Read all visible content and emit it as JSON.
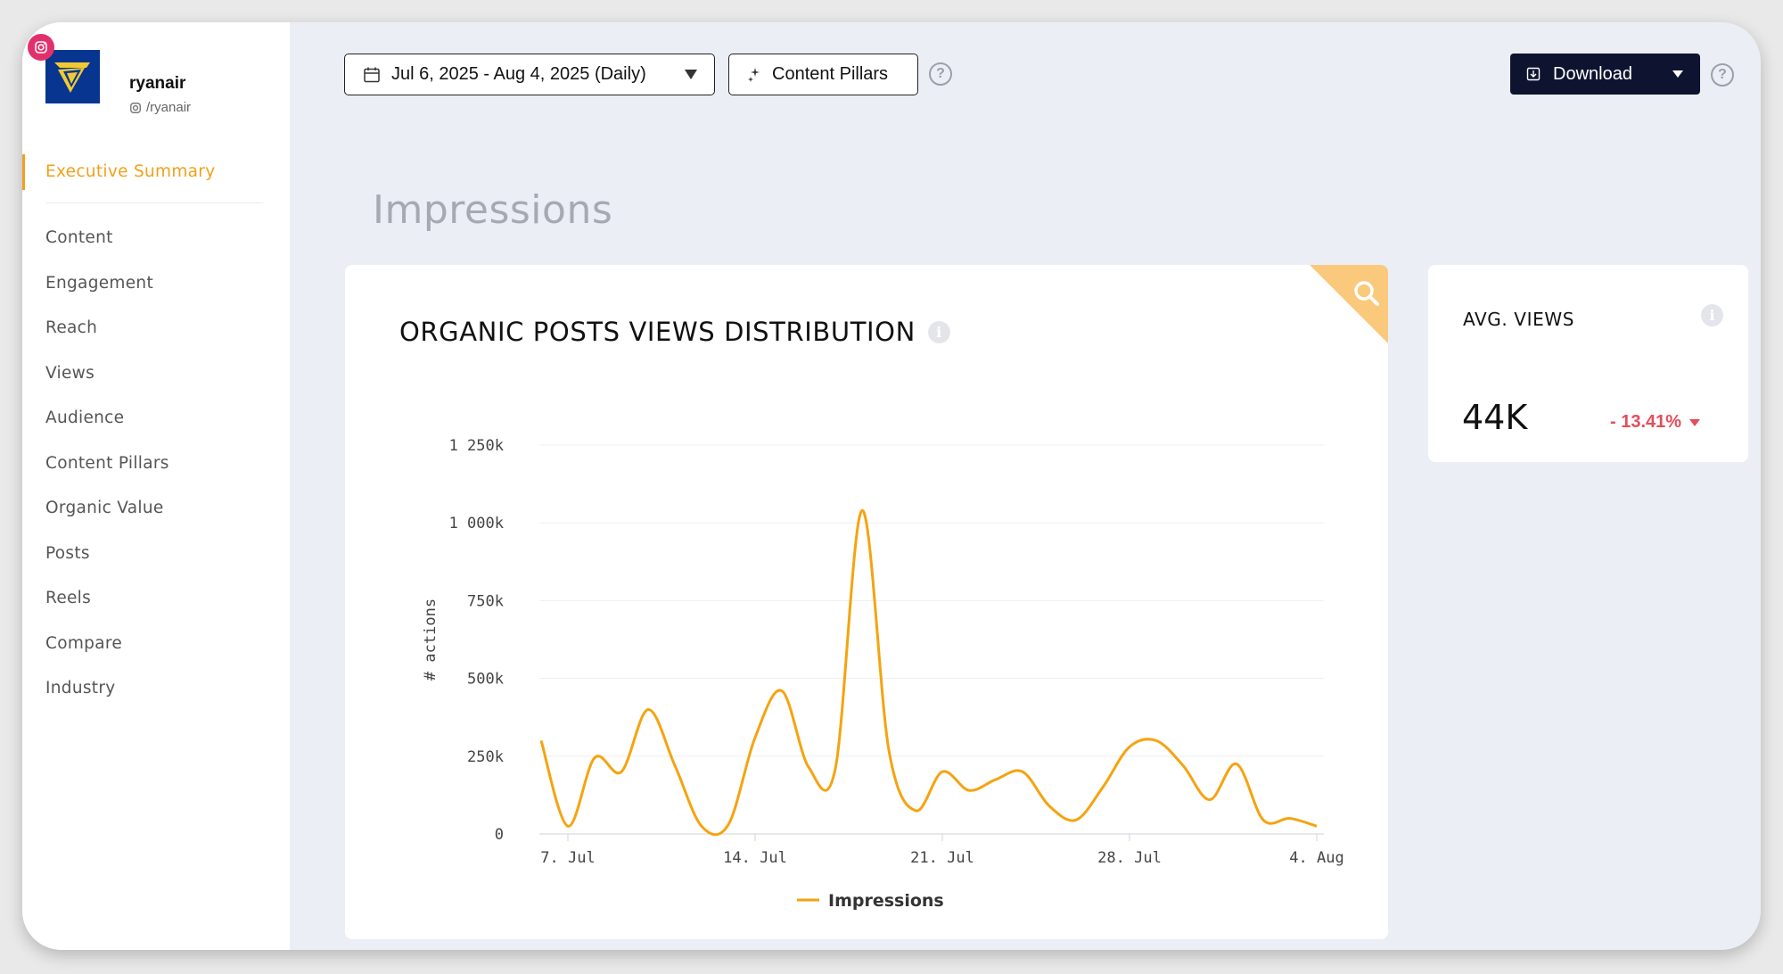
{
  "profile": {
    "name": "ryanair",
    "handle": "/ryanair"
  },
  "nav": {
    "items": [
      {
        "label": "Executive Summary",
        "active": true
      },
      {
        "label": "Content"
      },
      {
        "label": "Engagement"
      },
      {
        "label": "Reach"
      },
      {
        "label": "Views"
      },
      {
        "label": "Audience"
      },
      {
        "label": "Content Pillars"
      },
      {
        "label": "Organic Value"
      },
      {
        "label": "Posts"
      },
      {
        "label": "Reels"
      },
      {
        "label": "Compare"
      },
      {
        "label": "Industry"
      }
    ]
  },
  "toolbar": {
    "date_range": "Jul 6, 2025 - Aug 4, 2025 (Daily)",
    "pillars_label": "Content Pillars",
    "help": "?",
    "download_label": "Download"
  },
  "page": {
    "title": "Impressions"
  },
  "chart_card": {
    "title": "ORGANIC POSTS VIEWS DISTRIBUTION",
    "info": "i"
  },
  "avg_card": {
    "title": "AVG. VIEWS",
    "info": "i",
    "value": "44K",
    "change": "- 13.41%"
  },
  "colors": {
    "accent": "#f0a11b",
    "line": "#f5a30f",
    "negative": "#e34d5a",
    "dark_button": "#0e1430"
  },
  "chart_data": {
    "type": "line",
    "title": "ORGANIC POSTS VIEWS DISTRIBUTION",
    "xlabel": "",
    "ylabel": "# actions",
    "ylim": [
      0,
      1250000
    ],
    "yticks": [
      {
        "value": 0,
        "label": "0"
      },
      {
        "value": 250000,
        "label": "250k"
      },
      {
        "value": 500000,
        "label": "500k"
      },
      {
        "value": 750000,
        "label": "750k"
      },
      {
        "value": 1000000,
        "label": "1 000k"
      },
      {
        "value": 1250000,
        "label": "1 250k"
      }
    ],
    "xticks": [
      {
        "day": 1,
        "label": "7. Jul"
      },
      {
        "day": 8,
        "label": "14. Jul"
      },
      {
        "day": 15,
        "label": "21. Jul"
      },
      {
        "day": 22,
        "label": "28. Jul"
      },
      {
        "day": 29,
        "label": "4. Aug"
      }
    ],
    "x": [
      0,
      1,
      2,
      3,
      4,
      5,
      6,
      7,
      8,
      9,
      10,
      11,
      12,
      13,
      14,
      15,
      16,
      17,
      18,
      19,
      20,
      21,
      22,
      23,
      24,
      25,
      26,
      27,
      28,
      29
    ],
    "series": [
      {
        "name": "Impressions",
        "values": [
          300000,
          25000,
          245000,
          200000,
          400000,
          220000,
          25000,
          30000,
          310000,
          460000,
          215000,
          210000,
          1040000,
          270000,
          75000,
          200000,
          140000,
          175000,
          200000,
          90000,
          45000,
          150000,
          280000,
          300000,
          220000,
          110000,
          225000,
          45000,
          50000,
          25000
        ]
      }
    ],
    "legend": "bottom"
  }
}
